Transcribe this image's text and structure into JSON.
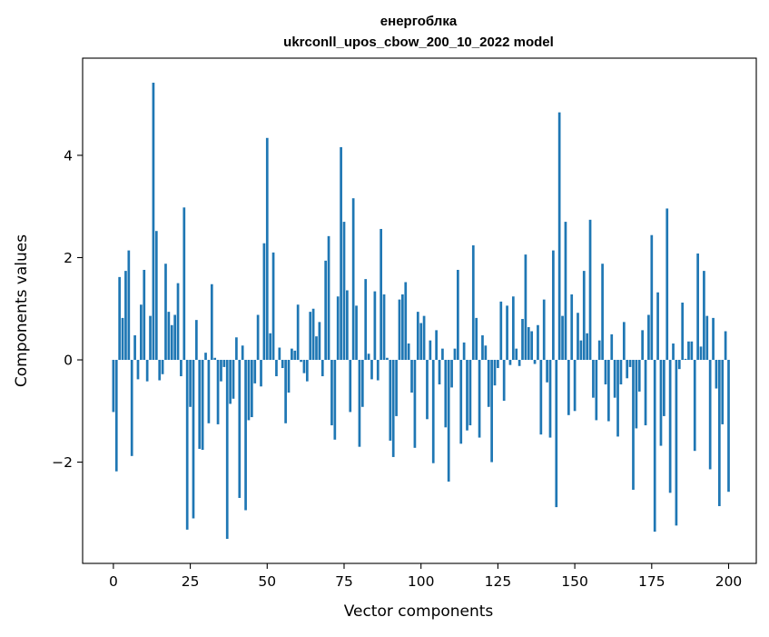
{
  "chart_data": {
    "type": "bar",
    "title": "енергоблка",
    "subtitle": "ukrconll_upos_cbow_200_10_2022 model",
    "xlabel": "Vector components",
    "ylabel": "Components values",
    "xlim": [
      -10,
      209
    ],
    "ylim": [
      -3.98,
      5.9
    ],
    "xticks": [
      0,
      25,
      50,
      75,
      100,
      125,
      150,
      175,
      200
    ],
    "xtick_labels": [
      "0",
      "25",
      "50",
      "75",
      "100",
      "125",
      "150",
      "175",
      "200"
    ],
    "yticks": [
      -2,
      0,
      2,
      4
    ],
    "ytick_labels": [
      "−2",
      "0",
      "2",
      "4"
    ],
    "grid": false,
    "bar_color": "#1f77b4",
    "values": [
      -1.02,
      -2.18,
      1.62,
      0.82,
      1.74,
      2.14,
      -1.88,
      0.48,
      -0.38,
      1.08,
      1.76,
      -0.42,
      0.86,
      5.42,
      2.52,
      -0.4,
      -0.28,
      1.88,
      0.94,
      0.68,
      0.88,
      1.5,
      -0.32,
      2.98,
      -3.32,
      -0.92,
      -3.1,
      0.78,
      -1.74,
      -1.76,
      0.14,
      -1.24,
      1.48,
      0.04,
      -1.26,
      -0.42,
      -0.14,
      -3.5,
      -0.86,
      -0.76,
      0.44,
      -2.7,
      0.28,
      -2.94,
      -1.18,
      -1.12,
      -0.46,
      0.88,
      -0.52,
      2.28,
      4.34,
      0.52,
      2.1,
      -0.32,
      0.24,
      -0.16,
      -1.24,
      -0.64,
      0.22,
      0.18,
      1.08,
      -0.04,
      -0.26,
      -0.42,
      0.94,
      1.0,
      0.46,
      0.74,
      -0.32,
      1.94,
      2.42,
      -1.28,
      -1.56,
      1.24,
      4.16,
      2.7,
      1.36,
      -1.02,
      3.16,
      1.06,
      -1.7,
      -0.92,
      1.58,
      0.12,
      -0.38,
      1.34,
      -0.4,
      2.56,
      1.28,
      0.04,
      -1.58,
      -1.9,
      -1.1,
      1.18,
      1.28,
      1.52,
      0.32,
      -0.64,
      -1.72,
      0.94,
      0.72,
      0.86,
      -1.16,
      0.38,
      -2.02,
      0.58,
      -0.48,
      0.22,
      -1.32,
      -2.38,
      -0.54,
      0.22,
      1.76,
      -1.64,
      0.34,
      -1.38,
      -1.28,
      2.24,
      0.82,
      -1.52,
      0.48,
      0.28,
      -0.92,
      -2.0,
      -0.5,
      -0.16,
      1.14,
      -0.8,
      1.06,
      -0.1,
      1.24,
      0.22,
      -0.12,
      0.8,
      2.06,
      0.64,
      0.56,
      -0.08,
      0.68,
      -1.46,
      1.18,
      -0.44,
      -1.52,
      2.14,
      -2.88,
      4.84,
      0.86,
      2.7,
      -1.08,
      1.28,
      -1.0,
      0.92,
      0.38,
      1.74,
      0.52,
      2.74,
      -0.74,
      -1.18,
      0.38,
      1.88,
      -0.48,
      -1.2,
      0.5,
      -0.74,
      -1.5,
      -0.48,
      0.74,
      -0.36,
      -0.14,
      -2.54,
      -1.34,
      -0.62,
      0.58,
      -1.28,
      0.88,
      2.44,
      -3.36,
      1.32,
      -1.68,
      -1.1,
      2.96,
      -2.6,
      0.32,
      -3.24,
      -0.18,
      1.12,
      0.02,
      0.36,
      0.36,
      -1.78,
      2.08,
      0.26,
      1.74,
      0.86,
      -2.14,
      0.82,
      -0.56,
      -2.86,
      -1.26,
      0.56,
      -2.58
    ]
  }
}
